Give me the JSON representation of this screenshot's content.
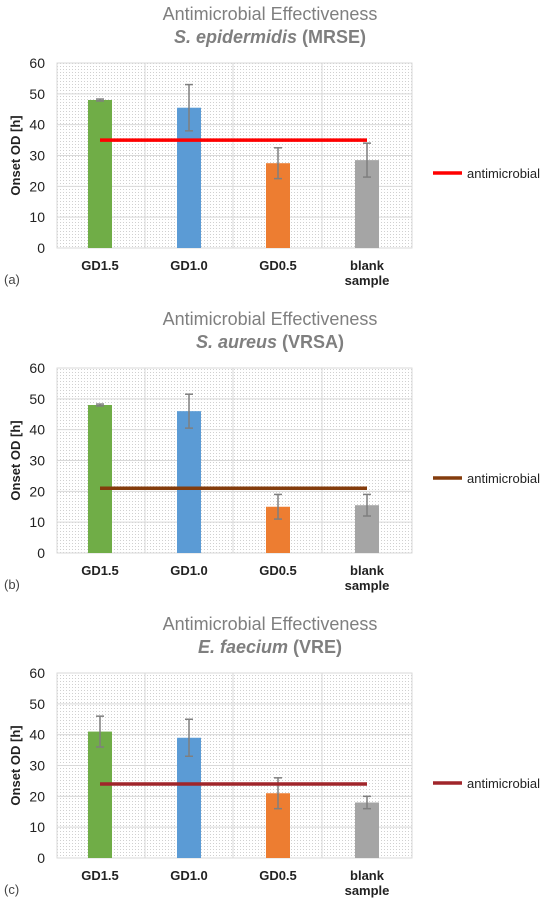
{
  "chart_data": [
    {
      "type": "bar",
      "panel_label": "(a)",
      "title_line1": "Antimicrobial Effectiveness",
      "title_species": "S. epidermidis",
      "title_strain": "(MRSE)",
      "ylabel": "Onset OD [h]",
      "ylim": [
        0,
        60
      ],
      "yticks": [
        0,
        10,
        20,
        30,
        40,
        50,
        60
      ],
      "categories": [
        [
          "GD1.5"
        ],
        [
          "GD1.0"
        ],
        [
          "GD0.5"
        ],
        [
          "blank",
          "sample"
        ]
      ],
      "values": [
        48,
        45.5,
        27.5,
        28.5
      ],
      "errors": [
        0.3,
        7.5,
        5,
        5.5
      ],
      "bar_colors": [
        "#70ad47",
        "#5b9bd5",
        "#ed7d31",
        "#a5a5a5"
      ],
      "threshold": {
        "name": "antimicrobial",
        "value": 35,
        "color": "#ff0000"
      },
      "legend_position": "right",
      "grid": true
    },
    {
      "type": "bar",
      "panel_label": "(b)",
      "title_line1": "Antimicrobial Effectiveness",
      "title_species": "S. aureus",
      "title_strain": "(VRSA)",
      "ylabel": "Onset OD [h]",
      "ylim": [
        0,
        60
      ],
      "yticks": [
        0,
        10,
        20,
        30,
        40,
        50,
        60
      ],
      "categories": [
        [
          "GD1.5"
        ],
        [
          "GD1.0"
        ],
        [
          "GD0.5"
        ],
        [
          "blank",
          "sample"
        ]
      ],
      "values": [
        48,
        46,
        15,
        15.5
      ],
      "errors": [
        0.3,
        5.5,
        4,
        3.5
      ],
      "bar_colors": [
        "#70ad47",
        "#5b9bd5",
        "#ed7d31",
        "#a5a5a5"
      ],
      "threshold": {
        "name": "antimicrobial",
        "value": 21,
        "color": "#843c0c"
      },
      "legend_position": "right",
      "grid": true
    },
    {
      "type": "bar",
      "panel_label": "(c)",
      "title_line1": "Antimicrobial Effectiveness",
      "title_species": "E. faecium",
      "title_strain": "(VRE)",
      "ylabel": "Onset OD [h]",
      "ylim": [
        0,
        60
      ],
      "yticks": [
        0,
        10,
        20,
        30,
        40,
        50,
        60
      ],
      "categories": [
        [
          "GD1.5"
        ],
        [
          "GD1.0"
        ],
        [
          "GD0.5"
        ],
        [
          "blank",
          "sample"
        ]
      ],
      "values": [
        41,
        39,
        21,
        18
      ],
      "errors": [
        5,
        6,
        5,
        2
      ],
      "bar_colors": [
        "#70ad47",
        "#5b9bd5",
        "#ed7d31",
        "#a5a5a5"
      ],
      "threshold": {
        "name": "antimicrobial",
        "value": 24,
        "color": "#a0252a"
      },
      "legend_position": "right",
      "grid": true
    }
  ]
}
